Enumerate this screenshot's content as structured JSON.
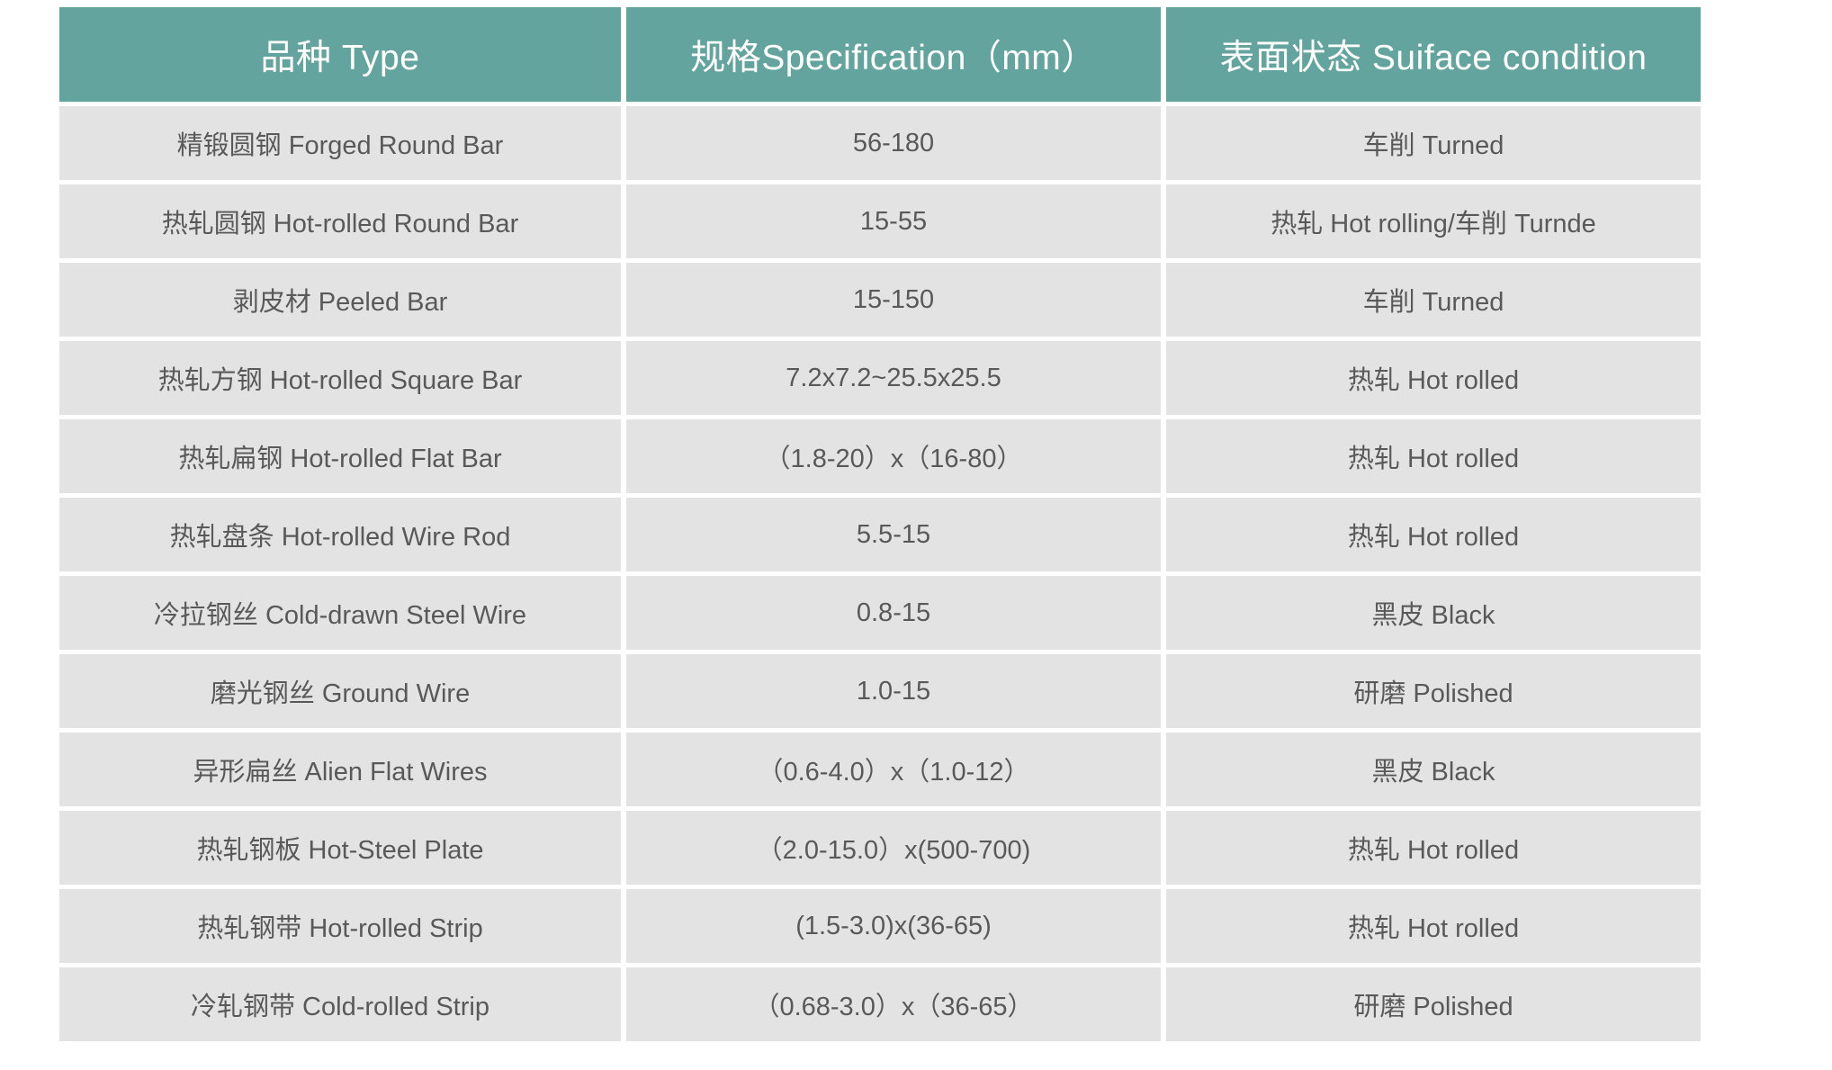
{
  "colors": {
    "header_bg": "#63a59e",
    "header_text": "#ffffff",
    "row_bg": "#e4e3e3",
    "cell_text": "#595959",
    "page_bg": "#ffffff"
  },
  "table": {
    "columns": [
      {
        "label": "品种 Type"
      },
      {
        "label": "规格Specification（mm）"
      },
      {
        "label": "表面状态 Suiface condition"
      }
    ],
    "rows": [
      {
        "type": "精锻圆钢 Forged Round Bar",
        "spec": "56-180",
        "surface": "车削 Turned"
      },
      {
        "type": "热轧圆钢 Hot-rolled Round Bar",
        "spec": "15-55",
        "surface": "热轧 Hot rolling/车削 Turnde"
      },
      {
        "type": "剥皮材 Peeled Bar",
        "spec": "15-150",
        "surface": "车削 Turned"
      },
      {
        "type": "热轧方钢 Hot-rolled Square Bar",
        "spec": "7.2x7.2~25.5x25.5",
        "surface": "热轧 Hot rolled"
      },
      {
        "type": "热轧扁钢 Hot-rolled Flat Bar",
        "spec": "（1.8-20）x（16-80）",
        "surface": "热轧 Hot rolled"
      },
      {
        "type": "热轧盘条 Hot-rolled Wire Rod",
        "spec": "5.5-15",
        "surface": "热轧 Hot rolled"
      },
      {
        "type": "冷拉钢丝 Cold-drawn Steel Wire",
        "spec": "0.8-15",
        "surface": "黑皮 Black"
      },
      {
        "type": "磨光钢丝 Ground Wire",
        "spec": "1.0-15",
        "surface": "研磨 Polished"
      },
      {
        "type": "异形扁丝 Alien Flat Wires",
        "spec": "（0.6-4.0）x（1.0-12）",
        "surface": "黑皮 Black"
      },
      {
        "type": "热轧钢板 Hot-Steel Plate",
        "spec": "（2.0-15.0）x(500-700)",
        "surface": "热轧 Hot rolled"
      },
      {
        "type": "热轧钢带 Hot-rolled Strip",
        "spec": "(1.5-3.0)x(36-65)",
        "surface": "热轧 Hot rolled"
      },
      {
        "type": "冷轧钢带 Cold-rolled Strip",
        "spec": "（0.68-3.0）x（36-65）",
        "surface": "研磨 Polished"
      }
    ]
  }
}
